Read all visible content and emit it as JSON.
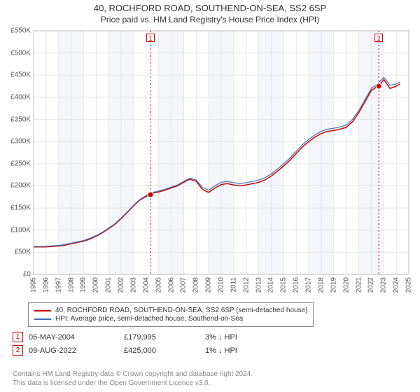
{
  "title": "40, ROCHFORD ROAD, SOUTHEND-ON-SEA, SS2 6SP",
  "subtitle": "Price paid vs. HM Land Registry's House Price Index (HPI)",
  "chart": {
    "x_min_year": 1995,
    "x_max_year": 2025,
    "x_ticks": [
      1995,
      1996,
      1997,
      1998,
      1999,
      2000,
      2001,
      2002,
      2003,
      2004,
      2005,
      2006,
      2007,
      2008,
      2009,
      2010,
      2011,
      2012,
      2013,
      2014,
      2015,
      2016,
      2017,
      2018,
      2019,
      2020,
      2021,
      2022,
      2023,
      2024,
      2025
    ],
    "y_min": 0,
    "y_max": 550000,
    "y_tick_step": 50000,
    "y_tick_labels": [
      "£0",
      "£50K",
      "£100K",
      "£150K",
      "£200K",
      "£250K",
      "£300K",
      "£350K",
      "£400K",
      "£450K",
      "£500K",
      "£550K"
    ],
    "grid_color": "#e6e6e6",
    "alt_band_color": "#f4f6fa",
    "background_color": "#ffffff",
    "axis_font_size": 10,
    "series": [
      {
        "name": "40, ROCHFORD ROAD, SOUTHEND-ON-SEA, SS2 6SP (semi-detached house)",
        "color": "#cc0000",
        "width": 1.5,
        "points": [
          [
            1995.0,
            62000
          ],
          [
            1995.5,
            62000
          ],
          [
            1996.0,
            62000
          ],
          [
            1996.5,
            63000
          ],
          [
            1997.0,
            64000
          ],
          [
            1997.5,
            66000
          ],
          [
            1998.0,
            69000
          ],
          [
            1998.5,
            72000
          ],
          [
            1999.0,
            75000
          ],
          [
            1999.5,
            80000
          ],
          [
            2000.0,
            86000
          ],
          [
            2000.5,
            94000
          ],
          [
            2001.0,
            103000
          ],
          [
            2001.5,
            113000
          ],
          [
            2002.0,
            126000
          ],
          [
            2002.5,
            140000
          ],
          [
            2003.0,
            155000
          ],
          [
            2003.5,
            168000
          ],
          [
            2004.0,
            176000
          ],
          [
            2004.35,
            180000
          ],
          [
            2004.5,
            183000
          ],
          [
            2005.0,
            186000
          ],
          [
            2005.5,
            190000
          ],
          [
            2006.0,
            195000
          ],
          [
            2006.5,
            200000
          ],
          [
            2007.0,
            208000
          ],
          [
            2007.5,
            215000
          ],
          [
            2008.0,
            210000
          ],
          [
            2008.5,
            192000
          ],
          [
            2009.0,
            185000
          ],
          [
            2009.5,
            195000
          ],
          [
            2010.0,
            203000
          ],
          [
            2010.5,
            205000
          ],
          [
            2011.0,
            202000
          ],
          [
            2011.5,
            200000
          ],
          [
            2012.0,
            202000
          ],
          [
            2012.5,
            205000
          ],
          [
            2013.0,
            208000
          ],
          [
            2013.5,
            213000
          ],
          [
            2014.0,
            222000
          ],
          [
            2014.5,
            233000
          ],
          [
            2015.0,
            245000
          ],
          [
            2015.5,
            258000
          ],
          [
            2016.0,
            273000
          ],
          [
            2016.5,
            288000
          ],
          [
            2017.0,
            300000
          ],
          [
            2017.5,
            310000
          ],
          [
            2018.0,
            318000
          ],
          [
            2018.5,
            323000
          ],
          [
            2019.0,
            325000
          ],
          [
            2019.5,
            328000
          ],
          [
            2020.0,
            332000
          ],
          [
            2020.5,
            345000
          ],
          [
            2021.0,
            365000
          ],
          [
            2021.5,
            390000
          ],
          [
            2022.0,
            415000
          ],
          [
            2022.5,
            425000
          ],
          [
            2022.6,
            425000
          ],
          [
            2023.0,
            440000
          ],
          [
            2023.5,
            420000
          ],
          [
            2024.0,
            425000
          ],
          [
            2024.3,
            430000
          ]
        ]
      },
      {
        "name": "HPI: Average price, semi-detached house, Southend-on-Sea",
        "color": "#3b6fb6",
        "width": 1.2,
        "points": [
          [
            1995.0,
            63000
          ],
          [
            1995.5,
            63000
          ],
          [
            1996.0,
            63500
          ],
          [
            1996.5,
            64500
          ],
          [
            1997.0,
            65500
          ],
          [
            1997.5,
            67500
          ],
          [
            1998.0,
            70500
          ],
          [
            1998.5,
            73500
          ],
          [
            1999.0,
            76500
          ],
          [
            1999.5,
            81500
          ],
          [
            2000.0,
            87500
          ],
          [
            2000.5,
            95500
          ],
          [
            2001.0,
            104500
          ],
          [
            2001.5,
            114500
          ],
          [
            2002.0,
            127500
          ],
          [
            2002.5,
            141500
          ],
          [
            2003.0,
            156500
          ],
          [
            2003.5,
            169500
          ],
          [
            2004.0,
            178000
          ],
          [
            2004.5,
            185000
          ],
          [
            2005.0,
            188000
          ],
          [
            2005.5,
            192000
          ],
          [
            2006.0,
            197000
          ],
          [
            2006.5,
            202000
          ],
          [
            2007.0,
            210000
          ],
          [
            2007.5,
            217000
          ],
          [
            2008.0,
            213000
          ],
          [
            2008.5,
            197000
          ],
          [
            2009.0,
            190000
          ],
          [
            2009.5,
            200000
          ],
          [
            2010.0,
            208000
          ],
          [
            2010.5,
            210000
          ],
          [
            2011.0,
            207000
          ],
          [
            2011.5,
            205000
          ],
          [
            2012.0,
            207000
          ],
          [
            2012.5,
            210000
          ],
          [
            2013.0,
            213000
          ],
          [
            2013.5,
            218000
          ],
          [
            2014.0,
            227000
          ],
          [
            2014.5,
            238000
          ],
          [
            2015.0,
            250000
          ],
          [
            2015.5,
            263000
          ],
          [
            2016.0,
            278000
          ],
          [
            2016.5,
            293000
          ],
          [
            2017.0,
            305000
          ],
          [
            2017.5,
            315000
          ],
          [
            2018.0,
            323000
          ],
          [
            2018.5,
            328000
          ],
          [
            2019.0,
            330000
          ],
          [
            2019.5,
            333000
          ],
          [
            2020.0,
            337000
          ],
          [
            2020.5,
            350000
          ],
          [
            2021.0,
            370000
          ],
          [
            2021.5,
            395000
          ],
          [
            2022.0,
            420000
          ],
          [
            2022.5,
            430000
          ],
          [
            2023.0,
            445000
          ],
          [
            2023.5,
            427000
          ],
          [
            2024.0,
            430000
          ],
          [
            2024.3,
            435000
          ]
        ]
      }
    ],
    "sale_markers": [
      {
        "idx": 1,
        "year": 2004.35,
        "price": 179995,
        "label_above": true
      },
      {
        "idx": 2,
        "year": 2022.6,
        "price": 425000,
        "label_above": true
      }
    ],
    "marker_line_color": "#cc0000"
  },
  "legend": {
    "border_color": "#888888",
    "font_size": 10
  },
  "sales_table": {
    "rows": [
      {
        "idx": "1",
        "date": "06-MAY-2004",
        "price": "£179,995",
        "delta": "3%",
        "direction": "down",
        "vs": "HPI"
      },
      {
        "idx": "2",
        "date": "09-AUG-2022",
        "price": "£425,000",
        "delta": "1%",
        "direction": "down",
        "vs": "HPI"
      }
    ]
  },
  "footer": {
    "line1": "Contains HM Land Registry data © Crown copyright and database right 2024.",
    "line2": "This data is licensed under the Open Government Licence v3.0."
  }
}
